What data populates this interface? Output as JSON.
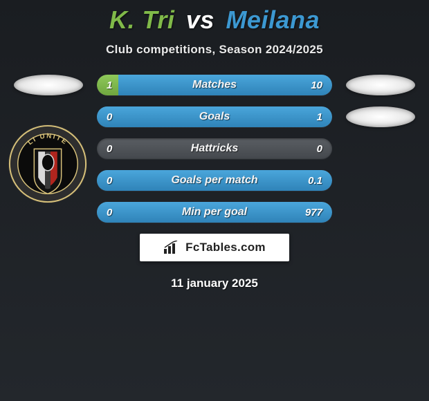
{
  "header": {
    "player1": "K. Tri",
    "vs": "vs",
    "player2": "Meilana",
    "player1_color": "#80b949",
    "player2_color": "#3c98d1"
  },
  "subtitle": "Club competitions, Season 2024/2025",
  "bars": [
    {
      "label": "Matches",
      "left": "1",
      "right": "10",
      "left_pct": 9,
      "right_pct": 91,
      "left_color": "#7fb94f",
      "right_color": "#3d97d0"
    },
    {
      "label": "Goals",
      "left": "0",
      "right": "1",
      "left_pct": 0,
      "right_pct": 100,
      "left_color": "#7fb94f",
      "right_color": "#3d97d0"
    },
    {
      "label": "Hattricks",
      "left": "0",
      "right": "0",
      "left_pct": 0,
      "right_pct": 0,
      "left_color": "#7fb94f",
      "right_color": "#3d97d0"
    },
    {
      "label": "Goals per match",
      "left": "0",
      "right": "0.1",
      "left_pct": 0,
      "right_pct": 100,
      "left_color": "#7fb94f",
      "right_color": "#3d97d0"
    },
    {
      "label": "Min per goal",
      "left": "0",
      "right": "977",
      "left_pct": 0,
      "right_pct": 100,
      "left_color": "#7fb94f",
      "right_color": "#3d97d0"
    }
  ],
  "side_badge_bg": "#efefef",
  "neutral_bar_bg": "#4d5156",
  "brand": "FcTables.com",
  "date": "11 january 2025",
  "crest": {
    "ring_outer": "#3a3a3a",
    "ring_inner": "#d8c27a",
    "ring_text": "LI UNITE",
    "shield_bg": "#0a0a0a",
    "shield_stripe": "#b0251e",
    "shield_accent": "#d9d9d9"
  }
}
